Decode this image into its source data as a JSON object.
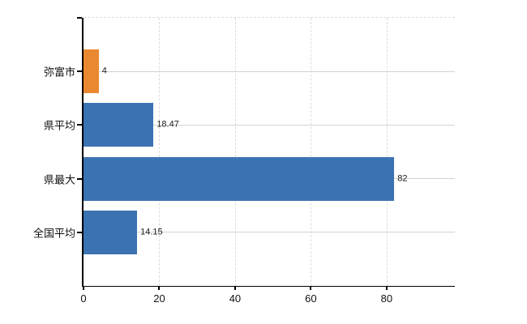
{
  "chart_data": {
    "type": "bar",
    "orientation": "horizontal",
    "title": "",
    "xlabel": "",
    "ylabel": "",
    "categories": [
      "弥富市",
      "県平均",
      "県最大",
      "全国平均"
    ],
    "values": [
      4,
      18.47,
      82,
      14.15
    ],
    "value_labels": [
      "4",
      "18.47",
      "82",
      "14.15"
    ],
    "bar_colors": [
      "#ea8830",
      "#3b72b1",
      "#3b72b1",
      "#3b72b1"
    ],
    "x_ticks": [
      0,
      20,
      40,
      60,
      80
    ],
    "x_tick_labels": [
      "0",
      "20",
      "40",
      "60",
      "80"
    ],
    "xlim": [
      0,
      98
    ],
    "grid": true,
    "legend": "none",
    "colors": {
      "axis": "#000000",
      "grid_dashed": "#dcdcdc",
      "grid_category": "#cdd7cd",
      "text": "#111111",
      "background": "#ffffff"
    }
  }
}
